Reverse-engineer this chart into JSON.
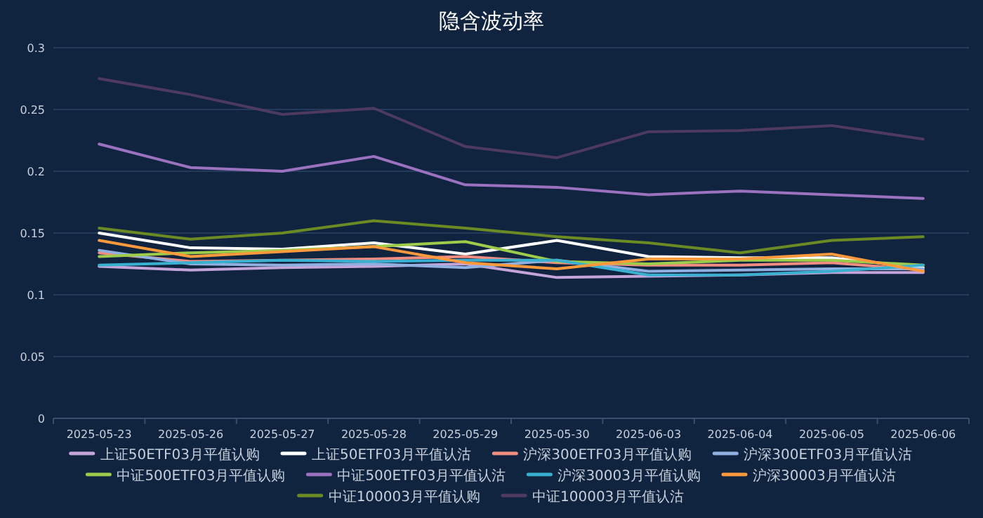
{
  "chart_data": {
    "type": "line",
    "title": "隐含波动率",
    "categories": [
      "2025-05-23",
      "2025-05-26",
      "2025-05-27",
      "2025-05-28",
      "2025-05-29",
      "2025-05-30",
      "2025-06-03",
      "2025-06-04",
      "2025-06-05",
      "2025-06-06"
    ],
    "ylim": [
      0,
      0.3
    ],
    "yticks": [
      0,
      0.05,
      0.1,
      0.15,
      0.2,
      0.25,
      0.3
    ],
    "grid": "y",
    "legend": "bottom",
    "marker": "none",
    "series": [
      {
        "name": "上证50ETF03月平值认购",
        "color": "#c3a5d9",
        "values": [
          0.123,
          0.12,
          0.122,
          0.123,
          0.125,
          0.114,
          0.115,
          0.116,
          0.118,
          0.118
        ]
      },
      {
        "name": "上证50ETF03月平值认沽",
        "color": "#ffffff",
        "values": [
          0.15,
          0.138,
          0.137,
          0.142,
          0.133,
          0.144,
          0.131,
          0.13,
          0.13,
          0.122
        ]
      },
      {
        "name": "沪深300ETF03月平值认购",
        "color": "#f08c80",
        "values": [
          0.134,
          0.127,
          0.128,
          0.129,
          0.131,
          0.126,
          0.124,
          0.124,
          0.126,
          0.12
        ]
      },
      {
        "name": "沪深300ETF03月平值认沽",
        "color": "#8fb0e0",
        "values": [
          0.136,
          0.125,
          0.124,
          0.125,
          0.122,
          0.128,
          0.119,
          0.12,
          0.121,
          0.121
        ]
      },
      {
        "name": "中证500ETF03月平值认购",
        "color": "#9ccc4a",
        "values": [
          0.131,
          0.134,
          0.136,
          0.139,
          0.143,
          0.127,
          0.125,
          0.128,
          0.128,
          0.124
        ]
      },
      {
        "name": "中证500ETF03月平值认沽",
        "color": "#9b72c0",
        "values": [
          0.222,
          0.203,
          0.2,
          0.212,
          0.189,
          0.187,
          0.181,
          0.184,
          0.181,
          0.178
        ]
      },
      {
        "name": "沪深30003月平值认购",
        "color": "#3ab0d0",
        "values": [
          0.124,
          0.126,
          0.128,
          0.127,
          0.128,
          0.128,
          0.116,
          0.116,
          0.119,
          0.124
        ]
      },
      {
        "name": "沪深30003月平值认沽",
        "color": "#ff9a3c",
        "values": [
          0.144,
          0.131,
          0.135,
          0.139,
          0.126,
          0.121,
          0.129,
          0.129,
          0.133,
          0.119
        ]
      },
      {
        "name": "中证100003月平值认购",
        "color": "#6b8a24",
        "values": [
          0.154,
          0.145,
          0.15,
          0.16,
          0.154,
          0.147,
          0.142,
          0.134,
          0.144,
          0.147
        ]
      },
      {
        "name": "中证100003月平值认沽",
        "color": "#4e3a5e",
        "values": [
          0.275,
          0.262,
          0.246,
          0.251,
          0.22,
          0.211,
          0.232,
          0.233,
          0.237,
          0.226
        ]
      }
    ]
  }
}
